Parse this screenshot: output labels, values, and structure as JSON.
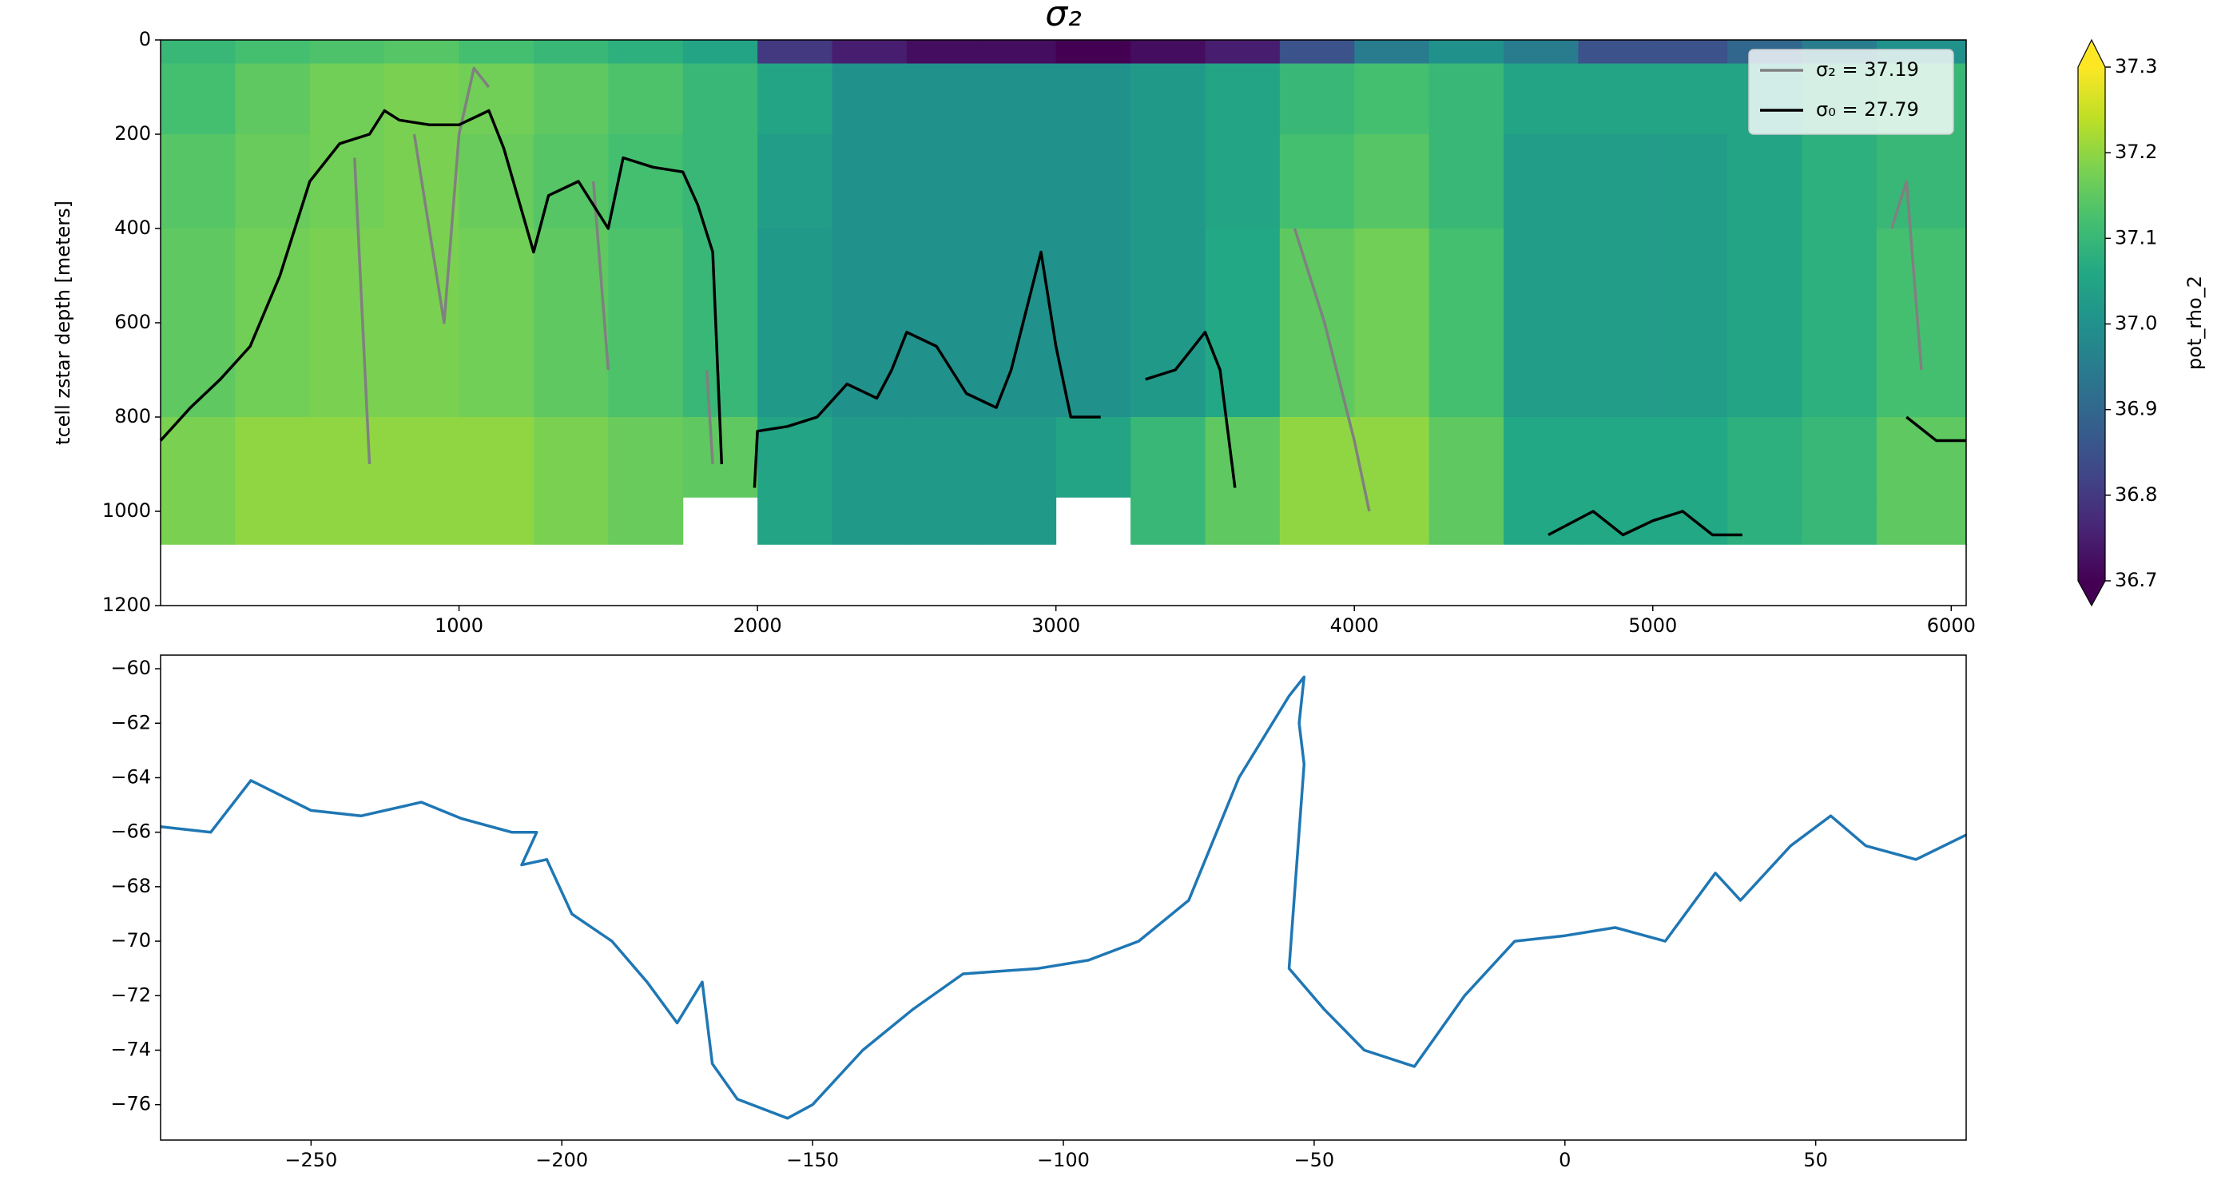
{
  "chart_data": [
    {
      "type": "heatmap",
      "title": "σ₂",
      "y_label": "tcell zstar depth [meters]",
      "colormap": "viridis",
      "x_edges": [
        0,
        250,
        500,
        750,
        1000,
        1250,
        1500,
        1750,
        2000,
        2250,
        2500,
        2750,
        3000,
        3250,
        3500,
        3750,
        4000,
        4250,
        4500,
        4750,
        5000,
        5250,
        5500,
        5750,
        6050
      ],
      "y_edges": [
        0,
        50,
        200,
        400,
        800,
        970,
        1070
      ],
      "values": [
        [
          37.1,
          37.12,
          37.13,
          37.14,
          37.12,
          37.1,
          37.08,
          37.05,
          36.8,
          36.75,
          36.72,
          36.72,
          36.7,
          36.72,
          36.75,
          36.85,
          36.95,
          37.0,
          36.95,
          36.85,
          36.85,
          36.9,
          36.95,
          37.0
        ],
        [
          37.12,
          37.15,
          37.17,
          37.18,
          37.17,
          37.15,
          37.13,
          37.1,
          37.05,
          37.0,
          37.0,
          37.0,
          37.0,
          37.02,
          37.05,
          37.1,
          37.12,
          37.1,
          37.05,
          37.05,
          37.05,
          37.05,
          37.08,
          37.1
        ],
        [
          37.14,
          37.16,
          37.17,
          37.18,
          37.16,
          37.14,
          37.12,
          37.1,
          37.03,
          37.0,
          37.0,
          37.0,
          37.0,
          37.02,
          37.05,
          37.12,
          37.14,
          37.1,
          37.03,
          37.03,
          37.03,
          37.05,
          37.08,
          37.1
        ],
        [
          37.15,
          37.17,
          37.18,
          37.18,
          37.17,
          37.15,
          37.13,
          37.1,
          37.02,
          37.0,
          37.0,
          37.0,
          37.0,
          37.02,
          37.06,
          37.15,
          37.17,
          37.12,
          37.03,
          37.03,
          37.03,
          37.05,
          37.08,
          37.12
        ],
        [
          37.18,
          37.2,
          37.2,
          37.2,
          37.2,
          37.18,
          37.16,
          37.15,
          37.05,
          37.02,
          37.02,
          37.02,
          37.05,
          37.1,
          37.15,
          37.2,
          37.2,
          37.15,
          37.06,
          37.06,
          37.06,
          37.08,
          37.1,
          37.15
        ],
        [
          37.18,
          37.2,
          37.2,
          37.2,
          37.2,
          37.18,
          37.16,
          null,
          37.05,
          37.02,
          37.02,
          37.02,
          null,
          37.1,
          37.15,
          37.2,
          37.2,
          37.15,
          37.06,
          37.06,
          37.06,
          37.08,
          37.1,
          37.15
        ]
      ],
      "xlim": [
        0,
        6050
      ],
      "ylim": [
        1200,
        0
      ],
      "xticks": [
        1000,
        2000,
        3000,
        4000,
        5000,
        6000
      ],
      "yticks": [
        0,
        200,
        400,
        600,
        800,
        1000,
        1200
      ],
      "colorbar": {
        "label": "pot_rho_2",
        "lim": [
          36.7,
          37.3
        ],
        "ticks": [
          36.7,
          36.8,
          36.9,
          37.0,
          37.1,
          37.2,
          37.3
        ],
        "extend": "both"
      },
      "legend": "upper right",
      "series": [
        {
          "name": "σ₂ = 37.19",
          "color": "#808080",
          "x": [
            650,
            700,
            null,
            850,
            950,
            1000,
            1050,
            1100,
            null,
            1450,
            1500,
            null,
            1830,
            1850,
            null,
            3800,
            3900,
            4000,
            4050,
            null,
            5800,
            5850,
            5900
          ],
          "values": [
            250,
            900,
            null,
            200,
            600,
            200,
            60,
            100,
            null,
            300,
            700,
            null,
            700,
            900,
            null,
            400,
            600,
            850,
            1000,
            null,
            400,
            300,
            700
          ]
        },
        {
          "name": "σ₀ = 27.79",
          "color": "#000000",
          "x": [
            0,
            100,
            200,
            300,
            400,
            500,
            600,
            700,
            750,
            800,
            900,
            1000,
            1100,
            1150,
            1250,
            1300,
            1400,
            1500,
            1550,
            1650,
            1750,
            1800,
            1850,
            1880,
            null,
            1990,
            2000,
            2100,
            2200,
            2300,
            2400,
            2450,
            2500,
            2600,
            2700,
            2800,
            2850,
            2950,
            3000,
            3050,
            3150,
            null,
            3300,
            3400,
            3500,
            3550,
            3600,
            null,
            4650,
            4800,
            4900,
            5000,
            5100,
            5200,
            5300,
            null,
            5850,
            5950,
            6050
          ],
          "values": [
            850,
            780,
            720,
            650,
            500,
            300,
            220,
            200,
            150,
            170,
            180,
            180,
            150,
            230,
            450,
            330,
            300,
            400,
            250,
            270,
            280,
            350,
            450,
            900,
            null,
            950,
            830,
            820,
            800,
            730,
            760,
            700,
            620,
            650,
            750,
            780,
            700,
            450,
            650,
            800,
            800,
            null,
            720,
            700,
            620,
            700,
            950,
            null,
            1050,
            1000,
            1050,
            1020,
            1000,
            1050,
            1050,
            null,
            800,
            850,
            850
          ]
        }
      ]
    },
    {
      "type": "line",
      "color": "#1f77b4",
      "x": [
        -280,
        -270,
        -262,
        -250,
        -240,
        -228,
        -220,
        -210,
        -205,
        -208,
        -203,
        -198,
        -190,
        -183,
        -177,
        -172,
        -170,
        -165,
        -155,
        -150,
        -140,
        -130,
        -120,
        -105,
        -95,
        -85,
        -75,
        -65,
        -55,
        -52,
        -53,
        -52,
        -55,
        -48,
        -40,
        -30,
        -20,
        -10,
        0,
        10,
        20,
        30,
        35,
        45,
        53,
        60,
        70,
        80
      ],
      "values": [
        -65.8,
        -66,
        -64.1,
        -65.2,
        -65.4,
        -64.9,
        -65.5,
        -66,
        -66,
        -67.2,
        -67,
        -69,
        -70,
        -71.5,
        -73,
        -71.5,
        -74.5,
        -75.8,
        -76.5,
        -76,
        -74,
        -72.5,
        -71.2,
        -71,
        -70.7,
        -70,
        -68.5,
        -64,
        -61,
        -60.3,
        -62,
        -63.5,
        -71,
        -72.5,
        -74,
        -74.6,
        -72,
        -70,
        -69.8,
        -69.5,
        -70,
        -67.5,
        -68.5,
        -66.5,
        -65.4,
        -66.5,
        -67,
        -66.1
      ],
      "xlim": [
        -280,
        80
      ],
      "ylim": [
        -77.3,
        -59.5
      ],
      "xticks": [
        {
          "value": -250,
          "label": "−250"
        },
        {
          "value": -200,
          "label": "−200"
        },
        {
          "value": -150,
          "label": "−150"
        },
        {
          "value": -100,
          "label": "−100"
        },
        {
          "value": -50,
          "label": "−50"
        },
        0,
        50
      ],
      "yticks": [
        {
          "value": -60,
          "label": "−60"
        },
        {
          "value": -62,
          "label": "−62"
        },
        {
          "value": -64,
          "label": "−64"
        },
        {
          "value": -66,
          "label": "−66"
        },
        {
          "value": -68,
          "label": "−68"
        },
        {
          "value": -70,
          "label": "−70"
        },
        {
          "value": -72,
          "label": "−72"
        },
        {
          "value": -74,
          "label": "−74"
        },
        {
          "value": -76,
          "label": "−76"
        }
      ]
    }
  ]
}
